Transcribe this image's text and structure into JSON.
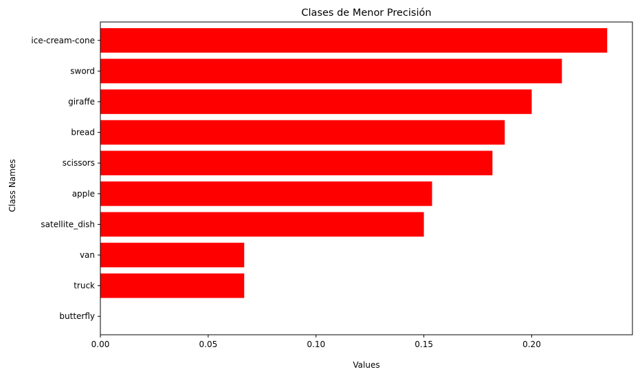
{
  "chart_data": {
    "type": "bar",
    "orientation": "horizontal",
    "title": "Clases de Menor Precisión",
    "xlabel": "Values",
    "ylabel": "Class Names",
    "categories": [
      "ice-cream-cone",
      "sword",
      "giraffe",
      "bread",
      "scissors",
      "apple",
      "satellite_dish",
      "van",
      "truck",
      "butterfly"
    ],
    "values": [
      0.235,
      0.214,
      0.2,
      0.1875,
      0.1818,
      0.1538,
      0.15,
      0.0667,
      0.0667,
      0.0
    ],
    "xlim": [
      0,
      0.2467
    ],
    "xticks": [
      0.0,
      0.05,
      0.1,
      0.15,
      0.2
    ],
    "xtick_labels": [
      "0.00",
      "0.05",
      "0.10",
      "0.15",
      "0.20"
    ],
    "bar_color": "#ff0000",
    "grid": false,
    "legend": "none"
  }
}
